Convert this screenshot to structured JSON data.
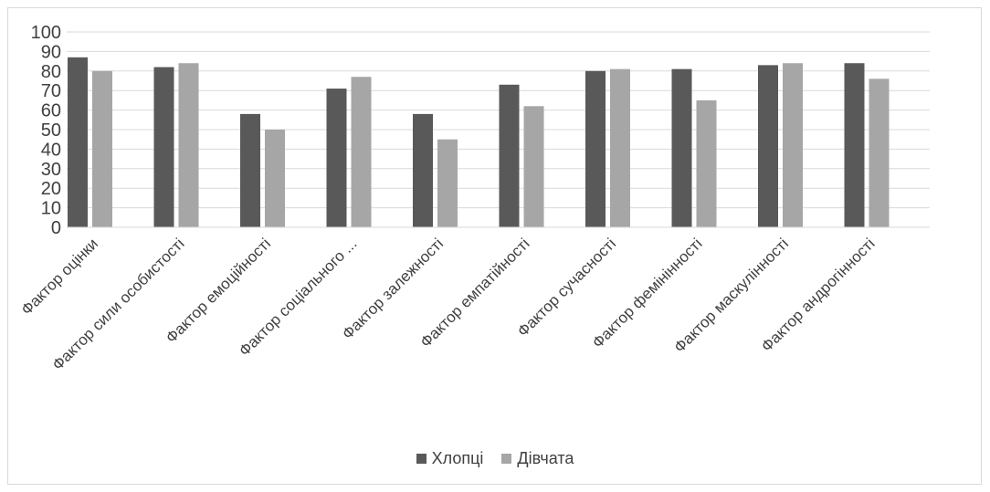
{
  "chart_data": {
    "type": "bar",
    "categories": [
      "Фактор оцінки",
      "Фактор сили особистості",
      "Фактор емоційності",
      "Фактор соціального ...",
      "Фактор залежності",
      "Фактор емпатійності",
      "Фактор сучасності",
      "Фактор фемінінності",
      "Фактор маскулінності",
      "Фактор андрогінності"
    ],
    "series": [
      {
        "name": "Хлопці",
        "color": "#595959",
        "values": [
          87,
          82,
          58,
          71,
          58,
          73,
          80,
          81,
          83,
          84
        ]
      },
      {
        "name": "Дівчата",
        "color": "#a6a6a6",
        "values": [
          80,
          84,
          50,
          77,
          45,
          62,
          81,
          65,
          84,
          76
        ]
      }
    ],
    "ylim": [
      0,
      100
    ],
    "yticks": [
      0,
      10,
      20,
      30,
      40,
      50,
      60,
      70,
      80,
      90,
      100
    ],
    "grid": true,
    "legend_position": "bottom",
    "title": "",
    "xlabel": "",
    "ylabel": ""
  }
}
